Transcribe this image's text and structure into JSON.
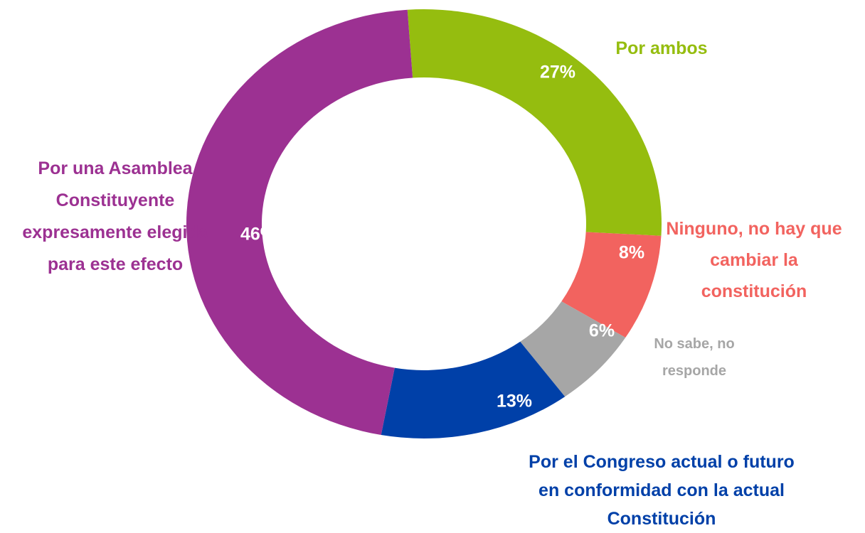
{
  "chart_data": {
    "type": "donut",
    "categories": [
      "Por ambos",
      "Ninguno, no hay que cambiar la constitución",
      "No sabe, no responde",
      "Por el Congreso actual o futuro en conformidad con la actual Constitución",
      "Por una Asamblea Constituyente expresamente elegida para este efecto"
    ],
    "values": [
      27,
      8,
      6,
      13,
      46
    ],
    "value_labels": [
      "27%",
      "8%",
      "6%",
      "13%",
      "46%"
    ],
    "colors": [
      "#95bd0f",
      "#f2635f",
      "#a6a6a6",
      "#0040a8",
      "#9c3192"
    ]
  }
}
